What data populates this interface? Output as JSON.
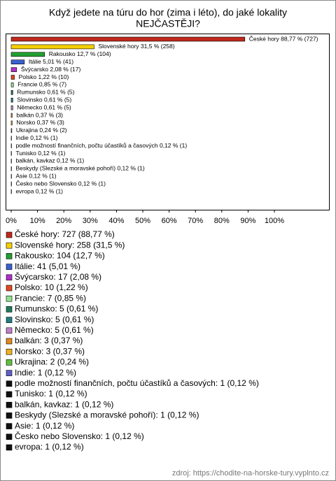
{
  "chart_data": {
    "type": "bar",
    "orientation": "horizontal",
    "title": [
      "Když jedete na túru do hor (zima i léto), do jaké lokality",
      "NEJČASTĚJI?"
    ],
    "categories": [
      "České hory",
      "Slovenské hory",
      "Rakousko",
      "Itálie",
      "Švýcarsko",
      "Polsko",
      "Francie",
      "Rumunsko",
      "Slovinsko",
      "Německo",
      "balkán",
      "Norsko",
      "Ukrajina",
      "Indie",
      "podle možností finančních, počtu účastíků a časových",
      "Tunisko",
      "balkán, kavkaz",
      "Beskydy (Slezské a moravské pohoří)",
      "Asie",
      "Česko nebo Slovensko",
      "evropa"
    ],
    "values": [
      88.77,
      31.5,
      12.7,
      5.01,
      2.08,
      1.22,
      0.85,
      0.61,
      0.61,
      0.61,
      0.37,
      0.37,
      0.24,
      0.12,
      0.12,
      0.12,
      0.12,
      0.12,
      0.12,
      0.12,
      0.12
    ],
    "value_labels": [
      "České hory 88,77 % (727)",
      "Slovenské hory 31,5 % (258)",
      "Rakousko 12,7 % (104)",
      "Itálie 5,01 % (41)",
      "Švýcarsko 2,08 % (17)",
      "Polsko 1,22 % (10)",
      "Francie 0,85 % (7)",
      "Rumunsko 0,61 % (5)",
      "Slovinsko 0,61 % (5)",
      "Německo 0,61 % (5)",
      "balkán 0,37 % (3)",
      "Norsko 0,37 % (3)",
      "Ukrajina 0,24 % (2)",
      "Indie 0,12 % (1)",
      "podle možností finančních, počtu účastíků a časových 0,12 % (1)",
      "Tunisko 0,12 % (1)",
      "balkán, kavkaz 0,12 % (1)",
      "Beskydy (Slezské a moravské pohoří) 0,12 % (1)",
      "Asie 0,12 % (1)",
      "Česko nebo Slovensko 0,12 % (1)",
      "evropa 0,12 % (1)"
    ],
    "legend_labels": [
      "České hory: 727 (88,77 %)",
      "Slovenské hory: 258 (31,5 %)",
      "Rakousko: 104 (12,7 %)",
      "Itálie: 41 (5,01 %)",
      "Švýcarsko: 17 (2,08 %)",
      "Polsko: 10 (1,22 %)",
      "Francie: 7 (0,85 %)",
      "Rumunsko: 5 (0,61 %)",
      "Slovinsko: 5 (0,61 %)",
      "Německo: 5 (0,61 %)",
      "balkán: 3 (0,37 %)",
      "Norsko: 3 (0,37 %)",
      "Ukrajina: 2 (0,24 %)",
      "Indie: 1 (0,12 %)",
      "podle možností finančních, počtu účastíků a časových: 1 (0,12 %)",
      "Tunisko: 1 (0,12 %)",
      "balkán, kavkaz: 1 (0,12 %)",
      "Beskydy (Slezské a moravské pohoří): 1 (0,12 %)",
      "Asie: 1 (0,12 %)",
      "Česko nebo Slovensko: 1 (0,12 %)",
      "evropa: 1 (0,12 %)"
    ],
    "colors": [
      "#c0281c",
      "#f5d000",
      "#22a030",
      "#3a60d0",
      "#b030c8",
      "#e04a20",
      "#90e090",
      "#1f7a5a",
      "#207f80",
      "#c080c8",
      "#e08a20",
      "#f0b020",
      "#60c040",
      "#6060c8",
      "#111111",
      "#111111",
      "#111111",
      "#111111",
      "#111111",
      "#111111",
      "#111111"
    ],
    "xlim": [
      0,
      100
    ],
    "xticks": [
      {
        "value": 0,
        "label": "0%"
      },
      {
        "value": 10,
        "label": "10%"
      },
      {
        "value": 20,
        "label": "20%"
      },
      {
        "value": 30,
        "label": "30%"
      },
      {
        "value": 40,
        "label": "40%"
      },
      {
        "value": 50,
        "label": "50%"
      },
      {
        "value": 60,
        "label": "60%"
      },
      {
        "value": 70,
        "label": "70%"
      },
      {
        "value": 80,
        "label": "80%"
      },
      {
        "value": 90,
        "label": "90%"
      },
      {
        "value": 100,
        "label": "100%"
      }
    ],
    "source": "zdroj: https://chodite-na-horske-tury.vyplnto.cz"
  }
}
